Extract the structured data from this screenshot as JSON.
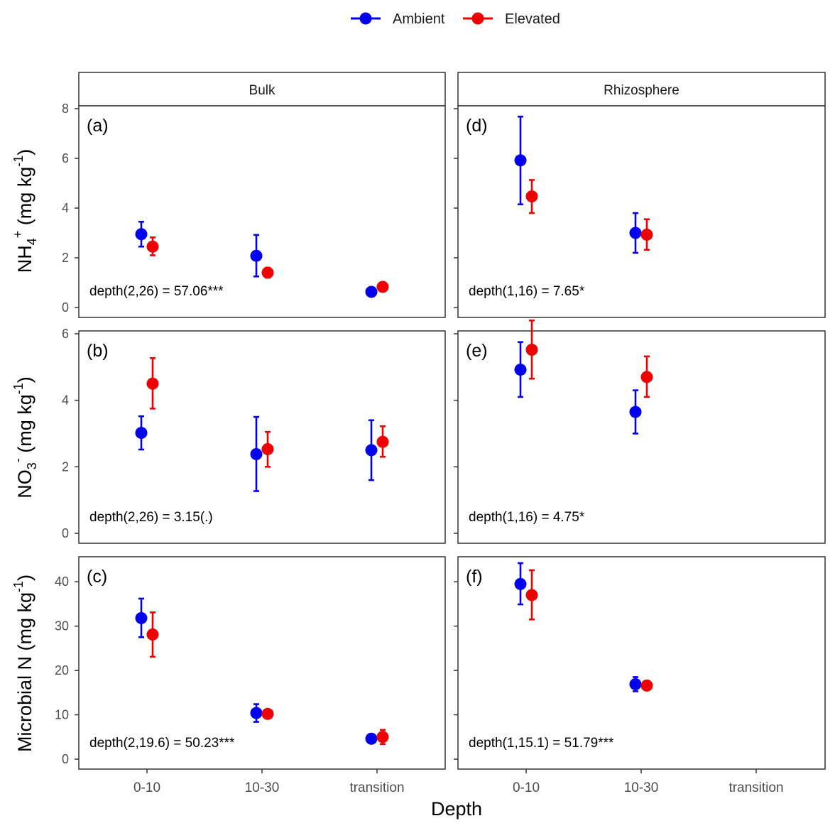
{
  "legend": {
    "placement": "top-center",
    "items": [
      {
        "name": "Ambient",
        "color": "#0000ee"
      },
      {
        "name": "Elevated",
        "color": "#ee0000"
      }
    ]
  },
  "axes": {
    "xlabel": "Depth",
    "row_ylabels": [
      {
        "base": "NH",
        "sub": "4",
        "sup": "+",
        "unit_base": " (mg kg",
        "unit_sup": "-1",
        "unit_end": ")"
      },
      {
        "base": "NO",
        "sub": "3",
        "sup": "-",
        "unit_base": " (mg kg",
        "unit_sup": "-1",
        "unit_end": ")"
      },
      {
        "base": "Microbial N",
        "sub": "",
        "sup": "",
        "unit_base": " (mg kg",
        "unit_sup": "-1",
        "unit_end": ")"
      }
    ],
    "columns": [
      "Bulk",
      "Rhizosphere"
    ]
  },
  "chart_data": [
    {
      "type": "scatter",
      "panel": "(a)",
      "facet": "Bulk",
      "row": 0,
      "col": 0,
      "categories": [
        "0-10",
        "10-30",
        "transition"
      ],
      "ylim": [
        0,
        8
      ],
      "yticks": [
        0,
        2,
        4,
        6,
        8
      ],
      "annotation": "depth(2,26) = 57.06***",
      "series": [
        {
          "name": "Ambient",
          "values": [
            2.95,
            2.08,
            0.63
          ],
          "lower": [
            2.45,
            1.25,
            0.55
          ],
          "upper": [
            3.45,
            2.92,
            0.72
          ]
        },
        {
          "name": "Elevated",
          "values": [
            2.45,
            1.4,
            0.83
          ],
          "lower": [
            2.1,
            1.2,
            0.72
          ],
          "upper": [
            2.82,
            1.6,
            0.93
          ]
        }
      ]
    },
    {
      "type": "scatter",
      "panel": "(d)",
      "facet": "Rhizosphere",
      "row": 0,
      "col": 1,
      "categories": [
        "0-10",
        "10-30",
        "transition"
      ],
      "ylim": [
        0,
        8
      ],
      "yticks": [
        0,
        2,
        4,
        6,
        8
      ],
      "annotation": "depth(1,16) = 7.65*",
      "series": [
        {
          "name": "Ambient",
          "values": [
            5.92,
            3.0,
            null
          ],
          "lower": [
            4.15,
            2.2,
            null
          ],
          "upper": [
            7.68,
            3.8,
            null
          ]
        },
        {
          "name": "Elevated",
          "values": [
            4.47,
            2.93,
            null
          ],
          "lower": [
            3.8,
            2.32,
            null
          ],
          "upper": [
            5.13,
            3.55,
            null
          ]
        }
      ]
    },
    {
      "type": "scatter",
      "panel": "(b)",
      "facet": "Bulk",
      "row": 1,
      "col": 0,
      "categories": [
        "0-10",
        "10-30",
        "transition"
      ],
      "ylim": [
        0,
        6
      ],
      "yticks": [
        0,
        2,
        4,
        6
      ],
      "annotation": "depth(2,26) = 3.15(.)",
      "series": [
        {
          "name": "Ambient",
          "values": [
            3.02,
            2.38,
            2.5
          ],
          "lower": [
            2.52,
            1.27,
            1.6
          ],
          "upper": [
            3.52,
            3.5,
            3.4
          ]
        },
        {
          "name": "Elevated",
          "values": [
            4.5,
            2.53,
            2.75
          ],
          "lower": [
            3.75,
            2.0,
            2.3
          ],
          "upper": [
            5.27,
            3.05,
            3.22
          ]
        }
      ]
    },
    {
      "type": "scatter",
      "panel": "(e)",
      "facet": "Rhizosphere",
      "row": 1,
      "col": 1,
      "categories": [
        "0-10",
        "10-30",
        "transition"
      ],
      "ylim": [
        0,
        6
      ],
      "yticks": [
        0,
        2,
        4,
        6
      ],
      "annotation": "depth(1,16) = 4.75*",
      "series": [
        {
          "name": "Ambient",
          "values": [
            4.92,
            3.65,
            null
          ],
          "lower": [
            4.1,
            3.0,
            null
          ],
          "upper": [
            5.75,
            4.3,
            null
          ]
        },
        {
          "name": "Elevated",
          "values": [
            5.52,
            4.7,
            null
          ],
          "lower": [
            4.65,
            4.1,
            null
          ],
          "upper": [
            6.4,
            5.32,
            null
          ]
        }
      ]
    },
    {
      "type": "scatter",
      "panel": "(c)",
      "facet": "Bulk",
      "row": 2,
      "col": 0,
      "categories": [
        "0-10",
        "10-30",
        "transition"
      ],
      "ylim": [
        0,
        45
      ],
      "yticks": [
        0,
        10,
        20,
        30,
        40
      ],
      "annotation": "depth(2,19.6) = 50.23***",
      "series": [
        {
          "name": "Ambient",
          "values": [
            31.8,
            10.4,
            4.6
          ],
          "lower": [
            27.5,
            8.4,
            3.7
          ],
          "upper": [
            36.2,
            12.4,
            5.5
          ]
        },
        {
          "name": "Elevated",
          "values": [
            28.1,
            10.2,
            5.0
          ],
          "lower": [
            23.1,
            9.5,
            3.4
          ],
          "upper": [
            33.1,
            10.9,
            6.6
          ]
        }
      ]
    },
    {
      "type": "scatter",
      "panel": "(f)",
      "facet": "Rhizosphere",
      "row": 2,
      "col": 1,
      "categories": [
        "0-10",
        "10-30",
        "transition"
      ],
      "ylim": [
        0,
        45
      ],
      "yticks": [
        0,
        10,
        20,
        30,
        40
      ],
      "annotation": "depth(1,15.1) = 51.79***",
      "series": [
        {
          "name": "Ambient",
          "values": [
            39.5,
            16.9,
            null
          ],
          "lower": [
            34.9,
            15.3,
            null
          ],
          "upper": [
            44.2,
            18.5,
            null
          ]
        },
        {
          "name": "Elevated",
          "values": [
            37.0,
            16.6,
            null
          ],
          "lower": [
            31.5,
            16.0,
            null
          ],
          "upper": [
            42.6,
            17.2,
            null
          ]
        }
      ]
    }
  ]
}
